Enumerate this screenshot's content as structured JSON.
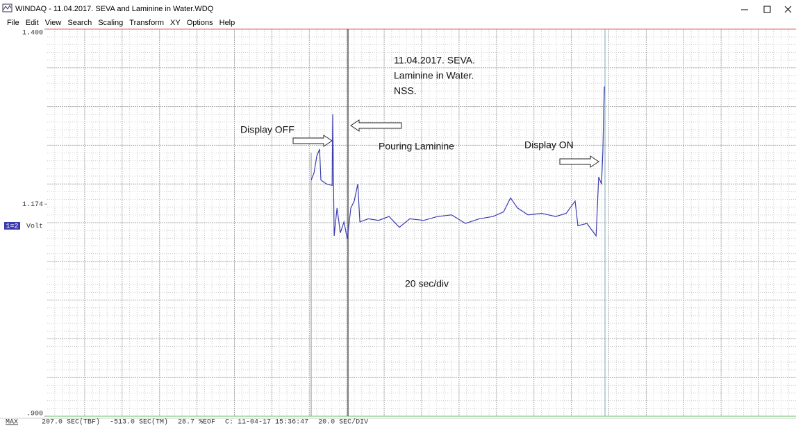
{
  "window": {
    "title": "WINDAQ - 11.04.2017. SEVA and Laminine in Water.WDQ",
    "menu": [
      "File",
      "Edit",
      "View",
      "Search",
      "Scaling",
      "Transform",
      "XY",
      "Options",
      "Help"
    ]
  },
  "chart_data": {
    "type": "line",
    "x": [
      141.0,
      142.5,
      144.0,
      145.5,
      146.2,
      149.2,
      152.2,
      152.5,
      153.3,
      154.8,
      156.6,
      158.5,
      160.3,
      162.2,
      164.0,
      165.9,
      167.0,
      171.5,
      177.0,
      182.6,
      188.1,
      193.7,
      201.1,
      208.6,
      216.0,
      223.4,
      230.8,
      238.2,
      243.8,
      247.5,
      251.2,
      256.8,
      264.2,
      271.6,
      277.2,
      282.0,
      283.5,
      288.3,
      293.2,
      294.6,
      296.1,
      296.8,
      297.6
    ],
    "values": [
      1.205,
      1.214,
      1.236,
      1.245,
      1.205,
      1.2,
      1.198,
      1.29,
      1.133,
      1.169,
      1.137,
      1.151,
      1.129,
      1.169,
      1.178,
      1.2,
      1.151,
      1.155,
      1.153,
      1.158,
      1.144,
      1.155,
      1.153,
      1.158,
      1.16,
      1.149,
      1.155,
      1.158,
      1.164,
      1.182,
      1.169,
      1.16,
      1.162,
      1.158,
      1.162,
      1.178,
      1.146,
      1.149,
      1.133,
      1.209,
      1.2,
      1.241,
      1.326
    ],
    "color": "#3b3bb0",
    "xlim": [
      0,
      400
    ],
    "ylim": [
      0.9,
      1.4
    ],
    "yticks": [
      {
        "value": 1.4,
        "label": "1.400"
      },
      {
        "value": 1.174,
        "label": "1.174"
      },
      {
        "value": 0.9,
        "label": ".900"
      }
    ],
    "y_unit": "Volt",
    "channel": "1=2",
    "annotations": [
      "11.04.2017. SEVA.",
      "Laminine in Water.",
      "NSS.",
      "Display OFF",
      "Pouring Laminine",
      "Display ON",
      "20 sec/div"
    ]
  },
  "status_bar": {
    "mode": "MAX",
    "fields": [
      "207.0 SEC(TBF)",
      "-513.0 SEC(TM)",
      "28.7 %EOF",
      "C: 11-04-17 15:36:47",
      "20.0 SEC/DIV"
    ]
  }
}
